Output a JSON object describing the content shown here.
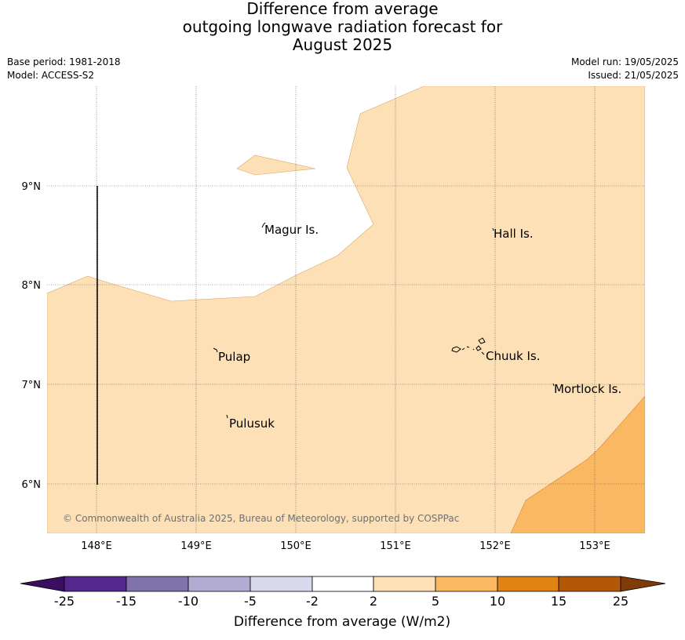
{
  "title": {
    "line1": "Difference from average",
    "line2": "outgoing longwave radiation forecast for",
    "line3": "August 2025"
  },
  "meta": {
    "base_period": "Base period: 1981-2018",
    "model": "Model: ACCESS-S2",
    "model_run": "Model run: 19/05/2025",
    "issued": "Issued: 21/05/2025"
  },
  "map": {
    "lat_ticks": [
      "9°N",
      "8°N",
      "7°N",
      "6°N"
    ],
    "lon_ticks": [
      "148°E",
      "149°E",
      "150°E",
      "151°E",
      "152°E",
      "153°E"
    ],
    "places": {
      "magur": "Magur Is.",
      "hall": "Hall Is.",
      "pulap": "Pulap",
      "chuuk": "Chuuk Is.",
      "mortlock": "Mortlock Is.",
      "pulusuk": "Pulusuk"
    },
    "copyright": "© Commonwealth of Australia 2025, Bureau of Meteorology, supported by COSPPac",
    "colors": {
      "band_2_5": "#fde0b6",
      "band_5_10": "#fbb862"
    }
  },
  "colorbar": {
    "ticks": [
      "-25",
      "-15",
      "-10",
      "-5",
      "-2",
      "2",
      "5",
      "10",
      "15",
      "25"
    ],
    "colors": [
      "#3b0f5f",
      "#54278f",
      "#8073ac",
      "#b2abd2",
      "#d8daeb",
      "#ffffff",
      "#fde0b6",
      "#fbb862",
      "#e08214",
      "#b35806",
      "#7f3b08"
    ],
    "label": "Difference from average (W/m2)"
  }
}
